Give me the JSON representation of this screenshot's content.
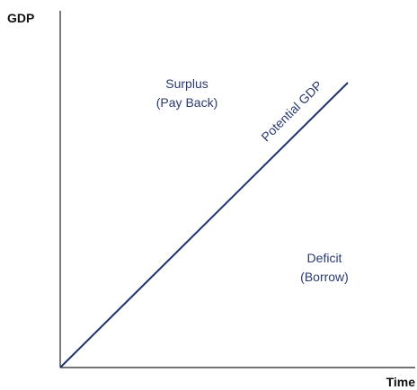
{
  "axes": {
    "y_label": "GDP",
    "x_label": "Time"
  },
  "line": {
    "label": "Potential GDP"
  },
  "regions": [
    {
      "lines": [
        "Surplus",
        "(Pay Back)"
      ]
    },
    {
      "lines": [
        "Deficit",
        "(Borrow)"
      ]
    }
  ]
}
